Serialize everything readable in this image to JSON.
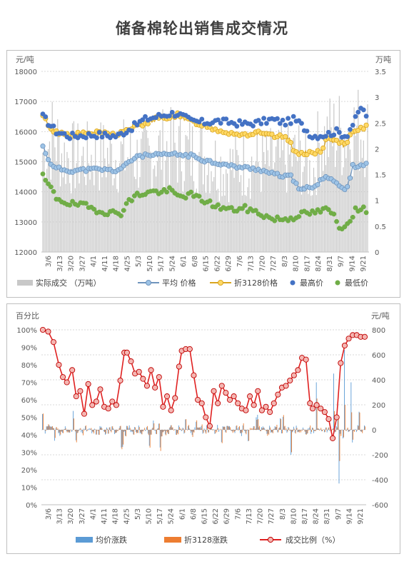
{
  "page": {
    "title": "储备棉轮出销售成交情况"
  },
  "chart_data": [
    {
      "type": "line",
      "ylabel_left": "元/吨",
      "ylabel_right": "万吨",
      "ylim_left": [
        12000,
        18000
      ],
      "ylim_right": [
        0,
        3.5
      ],
      "y_ticks_left": [
        "12000",
        "13000",
        "14000",
        "15000",
        "16000",
        "17000",
        "18000"
      ],
      "y_ticks_right": [
        "0",
        "0.5",
        "1",
        "1.5",
        "2",
        "2.5",
        "3",
        "3.5"
      ],
      "x_ticks": [
        "3/6",
        "3/13",
        "3/20",
        "3/27",
        "4/1",
        "4/11",
        "4/18",
        "4/25",
        "5/3",
        "5/10",
        "5/17",
        "5/24",
        "6/1",
        "6/8",
        "6/15",
        "6/22",
        "6/29",
        "7/6",
        "7/13",
        "7/20",
        "7/27",
        "8/3",
        "8/10",
        "8/17",
        "8/24",
        "8/31",
        "9/7",
        "9/14",
        "9/21"
      ],
      "legend_position": "bottom",
      "legend": [
        "实际成交 （万吨）",
        "平均 价格",
        "折3128价格",
        "最高价",
        "最低价"
      ],
      "colors": {
        "volume": "#c8c8c8",
        "avg": "#9dc3e6",
        "avg_edge": "#6e94bd",
        "std3128": "#ffd966",
        "std3128_edge": "#d9a520",
        "high": "#4472c4",
        "low": "#70ad47"
      },
      "series": [
        {
          "name": "实际成交 （万吨）",
          "axis": "right",
          "kind": "bar",
          "anchors": [
            [
              0,
              2.5
            ],
            [
              8,
              2.9
            ],
            [
              15,
              2.4
            ],
            [
              30,
              2.3
            ],
            [
              45,
              2.4
            ],
            [
              60,
              2.4
            ],
            [
              75,
              2.3
            ],
            [
              90,
              2.6
            ],
            [
              105,
              2.5
            ],
            [
              120,
              2.4
            ],
            [
              135,
              2.1
            ],
            [
              150,
              2.2
            ],
            [
              165,
              2.2
            ],
            [
              180,
              2.3
            ],
            [
              190,
              2.4
            ],
            [
              200,
              1.9
            ],
            [
              205,
              2.7
            ],
            [
              215,
              2.9
            ],
            [
              230,
              3.0
            ],
            [
              241,
              3.1
            ]
          ]
        },
        {
          "name": "平均 价格",
          "axis": "left",
          "kind": "line",
          "anchors": [
            [
              0,
              15500
            ],
            [
              4,
              15100
            ],
            [
              8,
              14800
            ],
            [
              20,
              14700
            ],
            [
              40,
              14750
            ],
            [
              55,
              14700
            ],
            [
              62,
              14900
            ],
            [
              70,
              15200
            ],
            [
              80,
              15200
            ],
            [
              95,
              15250
            ],
            [
              110,
              15200
            ],
            [
              120,
              15050
            ],
            [
              130,
              14950
            ],
            [
              140,
              14850
            ],
            [
              150,
              14800
            ],
            [
              160,
              14750
            ],
            [
              170,
              14600
            ],
            [
              180,
              14500
            ],
            [
              184,
              14550
            ],
            [
              186,
              14300
            ],
            [
              190,
              14150
            ],
            [
              200,
              14100
            ],
            [
              205,
              14300
            ],
            [
              210,
              14550
            ],
            [
              215,
              14400
            ],
            [
              220,
              14200
            ],
            [
              225,
              14000
            ],
            [
              230,
              14850
            ],
            [
              236,
              14900
            ],
            [
              241,
              14900
            ]
          ]
        },
        {
          "name": "折3128价格",
          "axis": "left",
          "kind": "line",
          "anchors": [
            [
              0,
              16500
            ],
            [
              8,
              16000
            ],
            [
              20,
              15900
            ],
            [
              40,
              15950
            ],
            [
              55,
              15900
            ],
            [
              65,
              16100
            ],
            [
              75,
              16250
            ],
            [
              85,
              16450
            ],
            [
              95,
              16500
            ],
            [
              100,
              16550
            ],
            [
              110,
              16350
            ],
            [
              120,
              16200
            ],
            [
              130,
              16050
            ],
            [
              140,
              15950
            ],
            [
              150,
              15900
            ],
            [
              160,
              15950
            ],
            [
              170,
              15850
            ],
            [
              180,
              15800
            ],
            [
              184,
              15700
            ],
            [
              186,
              15300
            ],
            [
              195,
              15300
            ],
            [
              205,
              15300
            ],
            [
              208,
              15400
            ],
            [
              211,
              15900
            ],
            [
              215,
              15700
            ],
            [
              220,
              15650
            ],
            [
              225,
              15500
            ],
            [
              228,
              15900
            ],
            [
              233,
              16000
            ],
            [
              241,
              16200
            ]
          ]
        },
        {
          "name": "最高价",
          "axis": "left",
          "kind": "scatter",
          "anchors": [
            [
              0,
              16500
            ],
            [
              10,
              16000
            ],
            [
              20,
              15850
            ],
            [
              40,
              15900
            ],
            [
              55,
              15850
            ],
            [
              65,
              16100
            ],
            [
              75,
              16400
            ],
            [
              85,
              16500
            ],
            [
              95,
              16600
            ],
            [
              100,
              16600
            ],
            [
              110,
              16350
            ],
            [
              120,
              16300
            ],
            [
              130,
              16350
            ],
            [
              140,
              16300
            ],
            [
              150,
              16250
            ],
            [
              160,
              16300
            ],
            [
              170,
              16400
            ],
            [
              180,
              16300
            ],
            [
              186,
              16400
            ],
            [
              190,
              16300
            ],
            [
              200,
              15850
            ],
            [
              210,
              15900
            ],
            [
              218,
              16000
            ],
            [
              225,
              15850
            ],
            [
              232,
              16400
            ],
            [
              236,
              16800
            ],
            [
              241,
              16500
            ]
          ]
        },
        {
          "name": "最低价",
          "axis": "left",
          "kind": "scatter",
          "anchors": [
            [
              0,
              14500
            ],
            [
              6,
              14100
            ],
            [
              10,
              13800
            ],
            [
              20,
              13600
            ],
            [
              30,
              13550
            ],
            [
              40,
              13400
            ],
            [
              50,
              13300
            ],
            [
              58,
              13300
            ],
            [
              62,
              13600
            ],
            [
              70,
              13900
            ],
            [
              80,
              14000
            ],
            [
              90,
              14000
            ],
            [
              95,
              14050
            ],
            [
              100,
              13850
            ],
            [
              110,
              13900
            ],
            [
              120,
              13700
            ],
            [
              130,
              13500
            ],
            [
              140,
              13400
            ],
            [
              150,
              13450
            ],
            [
              160,
              13300
            ],
            [
              170,
              13100
            ],
            [
              180,
              13100
            ],
            [
              186,
              13150
            ],
            [
              190,
              13250
            ],
            [
              200,
              13300
            ],
            [
              210,
              13400
            ],
            [
              215,
              13300
            ],
            [
              220,
              12800
            ],
            [
              226,
              12950
            ],
            [
              232,
              13400
            ],
            [
              241,
              13400
            ]
          ]
        }
      ]
    },
    {
      "type": "bar",
      "ylabel_left": "百分比",
      "ylabel_right": "元/吨",
      "ylim_left": [
        0,
        100
      ],
      "ylim_right": [
        -600,
        800
      ],
      "y_ticks_left": [
        "0%",
        "10%",
        "20%",
        "30%",
        "40%",
        "50%",
        "60%",
        "70%",
        "80%",
        "90%",
        "100%"
      ],
      "y_ticks_right": [
        "-600",
        "-400",
        "-200",
        "0",
        "200",
        "400",
        "600",
        "800"
      ],
      "x_ticks": [
        "3/6",
        "3/13",
        "3/20",
        "3/27",
        "4/1",
        "4/11",
        "4/18",
        "4/25",
        "5/3",
        "5/10",
        "5/17",
        "5/24",
        "6/1",
        "6/8",
        "6/15",
        "6/22",
        "6/29",
        "7/6",
        "7/13",
        "7/20",
        "7/27",
        "8/3",
        "8/10",
        "8/17",
        "8/24",
        "8/31",
        "9/7",
        "9/14",
        "9/21"
      ],
      "legend_position": "bottom",
      "legend": [
        "均价涨跌",
        "折3128涨跌",
        "成交比例（%）"
      ],
      "colors": {
        "avg_change": "#5b9bd5",
        "std3128_change": "#ed7d31",
        "ratio_line": "#e02020",
        "ratio_marker": "#f4b6b2",
        "ratio_edge": "#c00000"
      },
      "series": [
        {
          "name": "均价涨跌",
          "axis": "right",
          "kind": "bar"
        },
        {
          "name": "折3128涨跌",
          "axis": "right",
          "kind": "bar"
        },
        {
          "name": "成交比例（%）",
          "axis": "left",
          "kind": "line",
          "anchors": [
            [
              0,
              100
            ],
            [
              4,
              99
            ],
            [
              8,
              93
            ],
            [
              12,
              80
            ],
            [
              15,
              73
            ],
            [
              18,
              70
            ],
            [
              22,
              77
            ],
            [
              25,
              62
            ],
            [
              28,
              65
            ],
            [
              31,
              52
            ],
            [
              34,
              69
            ],
            [
              37,
              57
            ],
            [
              40,
              59
            ],
            [
              43,
              66
            ],
            [
              46,
              56
            ],
            [
              49,
              55
            ],
            [
              52,
              59
            ],
            [
              55,
              57
            ],
            [
              58,
              71
            ],
            [
              61,
              87
            ],
            [
              63,
              87
            ],
            [
              66,
              82
            ],
            [
              69,
              75
            ],
            [
              72,
              76
            ],
            [
              75,
              72
            ],
            [
              78,
              68
            ],
            [
              81,
              77
            ],
            [
              84,
              67
            ],
            [
              87,
              73
            ],
            [
              90,
              56
            ],
            [
              93,
              62
            ],
            [
              96,
              54
            ],
            [
              99,
              61
            ],
            [
              102,
              79
            ],
            [
              104,
              88
            ],
            [
              107,
              89
            ],
            [
              110,
              89
            ],
            [
              113,
              74
            ],
            [
              116,
              60
            ],
            [
              119,
              58
            ],
            [
              122,
              50
            ],
            [
              125,
              45
            ],
            [
              128,
              65
            ],
            [
              131,
              58
            ],
            [
              134,
              68
            ],
            [
              137,
              64
            ],
            [
              140,
              60
            ],
            [
              143,
              62
            ],
            [
              146,
              58
            ],
            [
              149,
              55
            ],
            [
              152,
              54
            ],
            [
              155,
              62
            ],
            [
              158,
              57
            ],
            [
              161,
              65
            ],
            [
              164,
              54
            ],
            [
              167,
              56
            ],
            [
              170,
              53
            ],
            [
              173,
              58
            ],
            [
              176,
              63
            ],
            [
              179,
              67
            ],
            [
              182,
              68
            ],
            [
              185,
              71
            ],
            [
              188,
              74
            ],
            [
              191,
              77
            ],
            [
              194,
              84
            ],
            [
              197,
              83
            ],
            [
              200,
              58
            ],
            [
              202,
              55
            ],
            [
              205,
              57
            ],
            [
              208,
              55
            ],
            [
              211,
              53
            ],
            [
              214,
              49
            ],
            [
              217,
              38
            ],
            [
              220,
              50
            ],
            [
              223,
              81
            ],
            [
              226,
              91
            ],
            [
              229,
              95
            ],
            [
              232,
              97
            ],
            [
              235,
              97
            ],
            [
              238,
              96
            ],
            [
              241,
              96
            ]
          ]
        }
      ]
    }
  ]
}
